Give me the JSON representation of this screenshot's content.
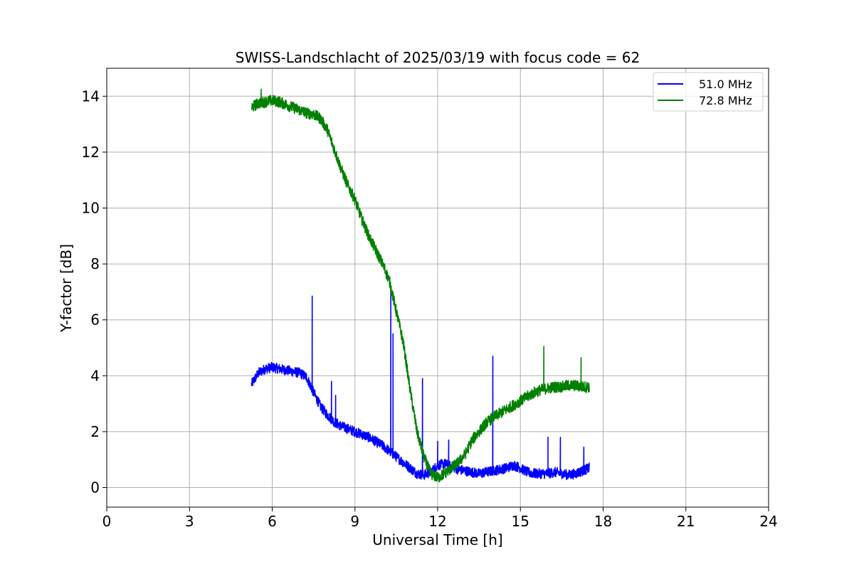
{
  "chart_data": {
    "type": "line",
    "title": "SWISS-Landschlacht of 2025/03/19 with focus code = 62",
    "xlabel": "Universal Time [h]",
    "ylabel": "Y-factor [dB]",
    "xlim": [
      0,
      24
    ],
    "ylim": [
      -0.7,
      15
    ],
    "xticks": [
      0,
      3,
      6,
      9,
      12,
      15,
      18,
      21,
      24
    ],
    "yticks": [
      0,
      2,
      4,
      6,
      8,
      10,
      12,
      14
    ],
    "grid": true,
    "legend_position": "top-right",
    "series": [
      {
        "name": "51.0 MHz",
        "color": "#0000ff",
        "noise": 0.18,
        "x": [
          5.25,
          5.5,
          5.75,
          6.0,
          6.25,
          6.5,
          6.75,
          7.0,
          7.25,
          7.5,
          7.75,
          8.0,
          8.25,
          8.5,
          8.75,
          9.0,
          9.25,
          9.5,
          9.75,
          10.0,
          10.25,
          10.5,
          10.75,
          11.0,
          11.25,
          11.5,
          11.75,
          12.0,
          12.25,
          12.5,
          12.75,
          13.0,
          13.25,
          13.5,
          13.75,
          14.0,
          14.25,
          14.5,
          14.75,
          15.0,
          15.25,
          15.5,
          15.75,
          16.0,
          16.25,
          16.5,
          16.75,
          17.0,
          17.25,
          17.5
        ],
        "y": [
          3.7,
          4.1,
          4.25,
          4.3,
          4.25,
          4.2,
          4.15,
          4.1,
          3.95,
          3.4,
          2.9,
          2.6,
          2.35,
          2.2,
          2.1,
          2.0,
          1.9,
          1.8,
          1.65,
          1.5,
          1.3,
          1.1,
          0.9,
          0.7,
          0.5,
          0.45,
          0.55,
          0.8,
          0.85,
          0.75,
          0.65,
          0.6,
          0.55,
          0.5,
          0.55,
          0.6,
          0.65,
          0.7,
          0.8,
          0.7,
          0.55,
          0.5,
          0.5,
          0.5,
          0.55,
          0.5,
          0.45,
          0.5,
          0.6,
          0.7
        ],
        "spikes": [
          [
            7.45,
            6.85
          ],
          [
            8.15,
            3.8
          ],
          [
            8.3,
            3.3
          ],
          [
            10.3,
            7.2
          ],
          [
            10.38,
            5.5
          ],
          [
            11.45,
            3.9
          ],
          [
            12.0,
            1.65
          ],
          [
            12.4,
            1.7
          ],
          [
            14.0,
            4.7
          ],
          [
            16.0,
            1.8
          ],
          [
            16.45,
            1.8
          ],
          [
            17.3,
            1.45
          ]
        ]
      },
      {
        "name": "72.8 MHz",
        "color": "#008000",
        "noise": 0.2,
        "x": [
          5.25,
          5.5,
          5.75,
          6.0,
          6.25,
          6.5,
          6.75,
          7.0,
          7.25,
          7.5,
          7.75,
          8.0,
          8.25,
          8.5,
          8.75,
          9.0,
          9.25,
          9.5,
          9.75,
          10.0,
          10.25,
          10.5,
          10.75,
          11.0,
          11.25,
          11.5,
          11.75,
          12.0,
          12.25,
          12.5,
          12.75,
          13.0,
          13.25,
          13.5,
          13.75,
          14.0,
          14.25,
          14.5,
          14.75,
          15.0,
          15.25,
          15.5,
          15.75,
          16.0,
          16.25,
          16.5,
          16.75,
          17.0,
          17.25,
          17.5
        ],
        "y": [
          13.6,
          13.75,
          13.8,
          13.85,
          13.8,
          13.7,
          13.6,
          13.5,
          13.4,
          13.35,
          13.2,
          12.8,
          12.1,
          11.4,
          10.8,
          10.3,
          9.6,
          9.0,
          8.5,
          8.0,
          7.4,
          6.3,
          5.2,
          3.5,
          2.0,
          1.1,
          0.5,
          0.35,
          0.5,
          0.7,
          0.9,
          1.2,
          1.7,
          2.0,
          2.3,
          2.5,
          2.65,
          2.8,
          2.95,
          3.1,
          3.25,
          3.4,
          3.5,
          3.55,
          3.6,
          3.6,
          3.65,
          3.65,
          3.6,
          3.6
        ],
        "spikes": [
          [
            5.6,
            14.25
          ],
          [
            15.85,
            5.05
          ],
          [
            17.2,
            4.65
          ]
        ]
      }
    ]
  }
}
